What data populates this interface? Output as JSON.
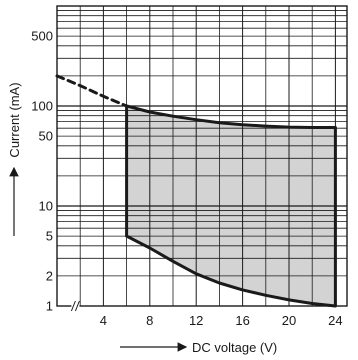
{
  "chart_data": {
    "type": "line",
    "title": "",
    "xlabel": "DC voltage (V)",
    "ylabel": "Current (mA)",
    "x_scale": "linear",
    "y_scale": "log",
    "xlim": [
      0,
      25
    ],
    "ylim": [
      1,
      1000
    ],
    "x_ticks": [
      "4",
      "8",
      "12",
      "16",
      "20",
      "24"
    ],
    "y_ticks": [
      "1",
      "2",
      "5",
      "10",
      "50",
      "100",
      "500"
    ],
    "axis_break_on_x": true,
    "grid": true,
    "legend": "none",
    "series": [
      {
        "style": "dashed",
        "x": [
          0,
          2,
          4,
          6
        ],
        "y": [
          200,
          160,
          125,
          100
        ]
      },
      {
        "style": "solid",
        "x": [
          6,
          8,
          10,
          12,
          14,
          16,
          18,
          20,
          22,
          24
        ],
        "y": [
          100,
          87,
          79,
          73,
          68,
          65,
          63,
          61.5,
          61,
          61
        ]
      },
      {
        "style": "solid",
        "x": [
          6,
          8,
          10,
          12,
          14,
          16,
          18,
          20,
          22,
          24
        ],
        "y": [
          5,
          3.8,
          2.8,
          2.1,
          1.7,
          1.45,
          1.28,
          1.15,
          1.06,
          1.0
        ]
      }
    ],
    "shaded_region": {
      "color": "#d3d3d3",
      "x_range": [
        6,
        24
      ]
    },
    "colors": {
      "line": "#1a1a1a",
      "grid": "#1a1a1a",
      "fill": "#d3d3d3"
    }
  }
}
